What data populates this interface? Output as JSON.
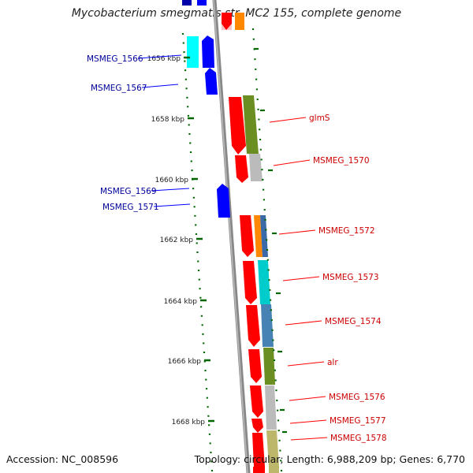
{
  "title": "Mycobacterium smegmatis str. MC2 155, complete genome",
  "footer": {
    "accession": "Accession: NC_008596",
    "summary": "Topology: circular; Length: 6,988,209 bp; Genes: 6,770"
  },
  "colors": {
    "forward": "#0000ff",
    "reverse": "#ff0000",
    "forward_label": "#00009a",
    "reverse_label": "#cc0000",
    "tick": "#006600",
    "backbone": "#888888"
  },
  "ticks": [
    {
      "label": "1656 kbp"
    },
    {
      "label": "1658 kbp"
    },
    {
      "label": "1660 kbp"
    },
    {
      "label": "1662 kbp"
    },
    {
      "label": "1664 kbp"
    },
    {
      "label": "1666 kbp"
    },
    {
      "label": "1668 kbp"
    }
  ],
  "genes_left": [
    {
      "label": "MSMEG_1566"
    },
    {
      "label": "MSMEG_1567"
    },
    {
      "label": "MSMEG_1569"
    },
    {
      "label": "MSMEG_1571"
    }
  ],
  "genes_right": [
    {
      "label": "glmS"
    },
    {
      "label": "MSMEG_1570"
    },
    {
      "label": "MSMEG_1572"
    },
    {
      "label": "MSMEG_1573"
    },
    {
      "label": "MSMEG_1574"
    },
    {
      "label": "alr"
    },
    {
      "label": "MSMEG_1576"
    },
    {
      "label": "MSMEG_1577"
    },
    {
      "label": "MSMEG_1578"
    }
  ]
}
